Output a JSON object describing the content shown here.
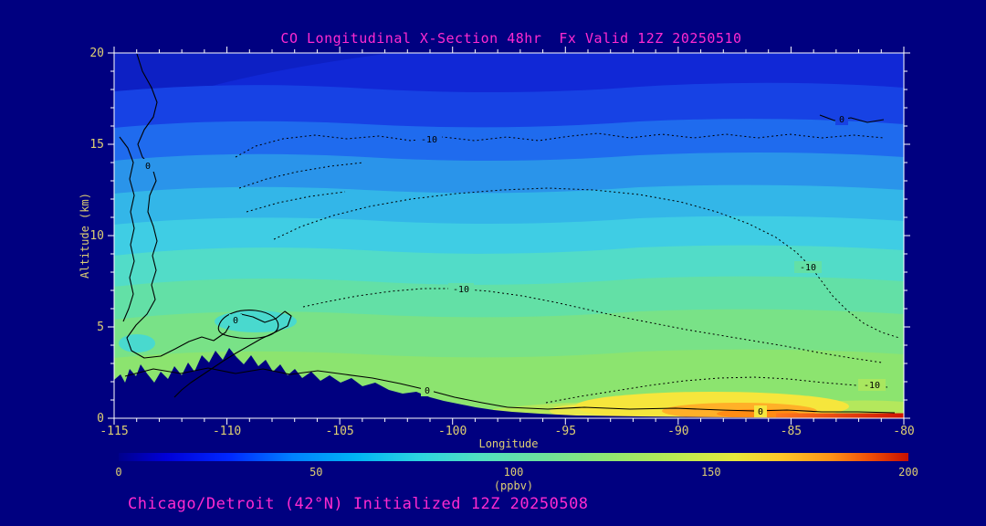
{
  "page": {
    "background": "#000080"
  },
  "header": {
    "title": "CO Longitudinal X-Section 48hr  Fx Valid 12Z 20250510"
  },
  "footer": {
    "subtitle": "Chicago/Detroit (42°N) Initialized 12Z 20250508"
  },
  "axes": {
    "y_label": "Altitude (km)",
    "x_label": "Longitude",
    "y_ticks": [
      "20",
      "15",
      "10",
      "5",
      "0"
    ],
    "x_ticks": [
      "-115",
      "-110",
      "-105",
      "-100",
      "-95",
      "-90",
      "-85",
      "-80"
    ]
  },
  "colorbar": {
    "ticks": [
      "0",
      "50",
      "100",
      "150",
      "200"
    ],
    "units_label": "(ppbv)"
  },
  "contour_labels": {
    "zero": "0",
    "minus_ten": "-10"
  },
  "colors": {
    "background": "#000080",
    "title_text": "#ff2ad0",
    "axis_text": "#decf72",
    "frame": "#ffffff"
  },
  "chart_data": {
    "type": "heatmap",
    "title": "CO Longitudinal X-Section 48hr  Fx Valid 12Z 20250510",
    "subtitle": "Chicago/Detroit (42°N) Initialized 12Z 20250508",
    "xlabel": "Longitude",
    "ylabel": "Altitude (km)",
    "xlim": [
      -115,
      -80
    ],
    "ylim": [
      0,
      20
    ],
    "x_tick_values": [
      -115,
      -110,
      -105,
      -100,
      -95,
      -90,
      -85,
      -80
    ],
    "y_tick_values": [
      0,
      5,
      10,
      15,
      20
    ],
    "colorbar": {
      "range": [
        0,
        200
      ],
      "ticks": [
        0,
        50,
        100,
        150,
        200
      ],
      "units": "ppbv",
      "palette": [
        "#00008c",
        "#0028ff",
        "#00b4f4",
        "#52dfc0",
        "#90e672",
        "#e6e83c",
        "#ffc628",
        "#ff9418",
        "#c81000"
      ]
    },
    "grid": {
      "longitudes": [
        -115,
        -110,
        -105,
        -100,
        -95,
        -90,
        -85,
        -80
      ],
      "altitudes_km": [
        0,
        2,
        5,
        10,
        15,
        20
      ],
      "co_ppbv": [
        [
          null,
          null,
          null,
          110,
          125,
          170,
          190,
          160
        ],
        [
          null,
          100,
          100,
          105,
          115,
          130,
          145,
          125
        ],
        [
          90,
          95,
          95,
          100,
          105,
          110,
          110,
          105
        ],
        [
          70,
          75,
          80,
          85,
          85,
          85,
          85,
          85
        ],
        [
          40,
          45,
          45,
          50,
          50,
          55,
          55,
          55
        ],
        [
          20,
          25,
          25,
          25,
          25,
          25,
          30,
          30
        ]
      ],
      "null_meaning": "below terrain surface"
    },
    "terrain_profile": "navy silhouette of surface elevation from -115 to about -97, peaks near 3.5 km around -110",
    "overlay_contours": [
      {
        "style": "solid",
        "label": "0"
      },
      {
        "style": "dotted",
        "label": "-10"
      }
    ],
    "legend_position": "bottom colorbar"
  }
}
